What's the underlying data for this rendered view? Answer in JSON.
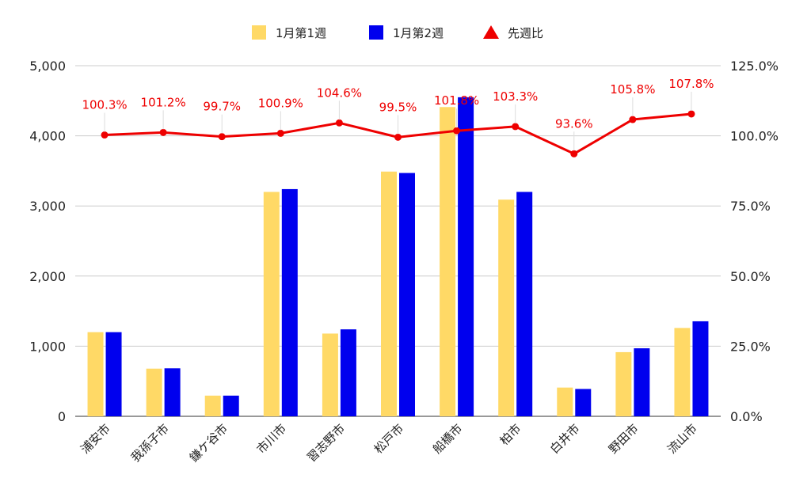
{
  "chart_data": {
    "type": "bar",
    "categories": [
      "浦安市",
      "我孫子市",
      "鎌ケ谷市",
      "市川市",
      "習志野市",
      "松戸市",
      "船橋市",
      "柏市",
      "白井市",
      "野田市",
      "流山市"
    ],
    "series": [
      {
        "name": "1月第1週",
        "kind": "bar",
        "axis": "left",
        "color": "#FFD966",
        "values": [
          1200,
          680,
          295,
          3200,
          1180,
          3490,
          4410,
          3090,
          410,
          915,
          1260
        ]
      },
      {
        "name": "1月第2週",
        "kind": "bar",
        "axis": "left",
        "color": "#0000EE",
        "values": [
          1200,
          685,
          295,
          3240,
          1240,
          3470,
          4550,
          3200,
          390,
          970,
          1355
        ]
      },
      {
        "name": "先週比",
        "kind": "line",
        "axis": "right",
        "color": "#EE0000",
        "marker": "triangle",
        "values": [
          100.3,
          101.2,
          99.7,
          100.9,
          104.6,
          99.5,
          101.8,
          103.3,
          93.6,
          105.8,
          107.8
        ],
        "labels": [
          "100.3%",
          "101.2%",
          "99.7%",
          "100.9%",
          "104.6%",
          "99.5%",
          "101.8%",
          "103.3%",
          "93.6%",
          "105.8%",
          "107.8%"
        ]
      }
    ],
    "left_axis": {
      "ylim": [
        0,
        5000
      ],
      "ticks": [
        0,
        1000,
        2000,
        3000,
        4000,
        5000
      ],
      "tick_labels": [
        "0",
        "1,000",
        "2,000",
        "3,000",
        "4,000",
        "5,000"
      ]
    },
    "right_axis": {
      "ylim": [
        0,
        125
      ],
      "ticks": [
        0,
        25,
        50,
        75,
        100,
        125
      ],
      "tick_labels": [
        "0.0%",
        "25.0%",
        "50.0%",
        "75.0%",
        "100.0%",
        "125.0%"
      ]
    },
    "grid": true,
    "legend_position": "top-center"
  }
}
